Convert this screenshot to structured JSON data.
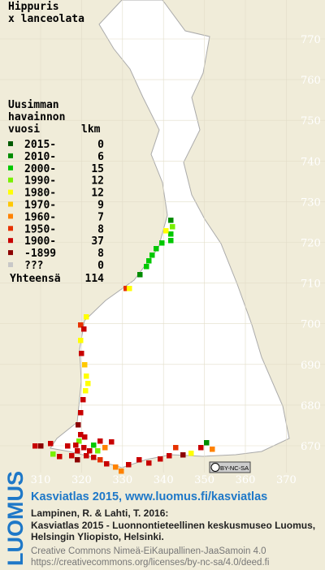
{
  "title": {
    "line1": "Hippuris",
    "line2": "x lanceolata"
  },
  "legend": {
    "heading1": "Uusimman",
    "heading2": "havainnon",
    "col_year": "vuosi",
    "col_count": "lkm",
    "rows": [
      {
        "label": "2015-",
        "count": 0,
        "color": "#005a00"
      },
      {
        "label": "2010-",
        "count": 6,
        "color": "#008c00"
      },
      {
        "label": "2000-",
        "count": 15,
        "color": "#00c800"
      },
      {
        "label": "1990-",
        "count": 12,
        "color": "#78f000"
      },
      {
        "label": "1980-",
        "count": 12,
        "color": "#ffff00"
      },
      {
        "label": "1970-",
        "count": 9,
        "color": "#ffc800"
      },
      {
        "label": "1960-",
        "count": 7,
        "color": "#ff8200"
      },
      {
        "label": "1950-",
        "count": 8,
        "color": "#e63200"
      },
      {
        "label": "1900-",
        "count": 37,
        "color": "#c80000"
      },
      {
        "label": "-1899",
        "count": 8,
        "color": "#8c0000"
      },
      {
        "label": "???",
        "count": 0,
        "color": "#c8c8c8"
      }
    ],
    "total_label": "Yhteensä",
    "total": 114
  },
  "grid": {
    "y_labels": [
      770,
      760,
      750,
      740,
      730,
      720,
      710,
      700,
      690,
      680,
      670
    ],
    "x_labels": [
      310,
      320,
      330,
      340,
      350,
      360,
      370
    ]
  },
  "license_badge": "BY-NC-SA",
  "footer": {
    "brand": "LUOMUS",
    "link": "Kasviatlas 2015, www.luomus.fi/kasviatlas",
    "citation1": "Lampinen, R. & Lahti, T. 2016:",
    "citation2": "Kasviatlas 2015 - Luonnontieteellinen keskusmuseo Luomus,",
    "citation3": "Helsingin Yliopisto, Helsinki.",
    "license1": "Creative Commons Nimeä-EiKaupallinen-JaaSamoin 4.0",
    "license2": "https://creativecommons.org/licenses/by-nc-sa/4.0/deed.fi"
  }
}
